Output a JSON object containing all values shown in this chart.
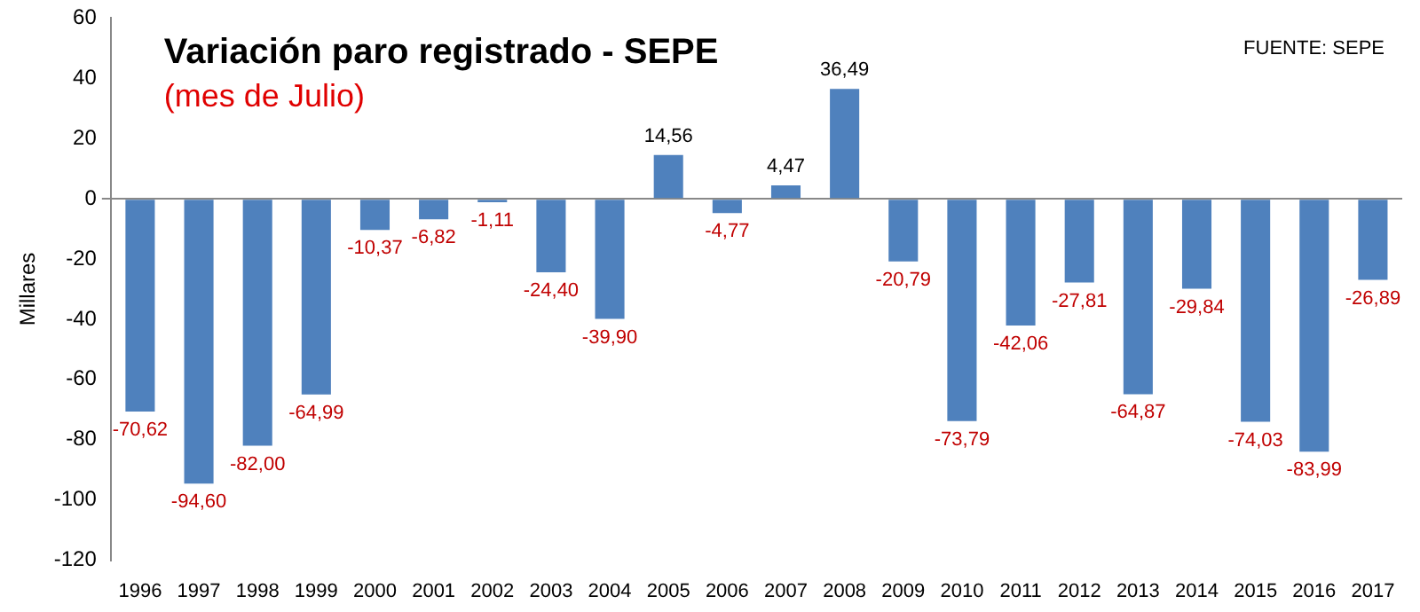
{
  "chart_data": {
    "type": "bar",
    "title": "Variación paro registrado - SEPE",
    "subtitle": "(mes de Julio)",
    "ylabel": "Millares",
    "annotations": [
      "FUENTE: SEPE"
    ],
    "categories": [
      "1996",
      "1997",
      "1998",
      "1999",
      "2000",
      "2001",
      "2002",
      "2003",
      "2004",
      "2005",
      "2006",
      "2007",
      "2008",
      "2009",
      "2010",
      "2011",
      "2012",
      "2013",
      "2014",
      "2015",
      "2016",
      "2017"
    ],
    "values": [
      -70.62,
      -94.6,
      -82.0,
      -64.99,
      -10.37,
      -6.82,
      -1.11,
      -24.4,
      -39.9,
      14.56,
      -4.77,
      4.47,
      36.49,
      -20.79,
      -73.79,
      -42.06,
      -27.81,
      -64.87,
      -29.84,
      -74.03,
      -83.99,
      -26.89
    ],
    "value_labels": [
      "-70,62",
      "-94,60",
      "-82,00",
      "-64,99",
      "-10,37",
      "-6,82",
      "-1,11",
      "-24,40",
      "-39,90",
      "14,56",
      "-4,77",
      "4,47",
      "36,49",
      "-20,79",
      "-73,79",
      "-42,06",
      "-27,81",
      "-64,87",
      "-29,84",
      "-74,03",
      "-83,99",
      "-26,89"
    ],
    "color": "#4f81bd",
    "ylim": [
      -120,
      60
    ],
    "yticks": [
      -120,
      -100,
      -80,
      -60,
      -40,
      -20,
      0,
      20,
      40,
      60
    ],
    "legend": false
  }
}
